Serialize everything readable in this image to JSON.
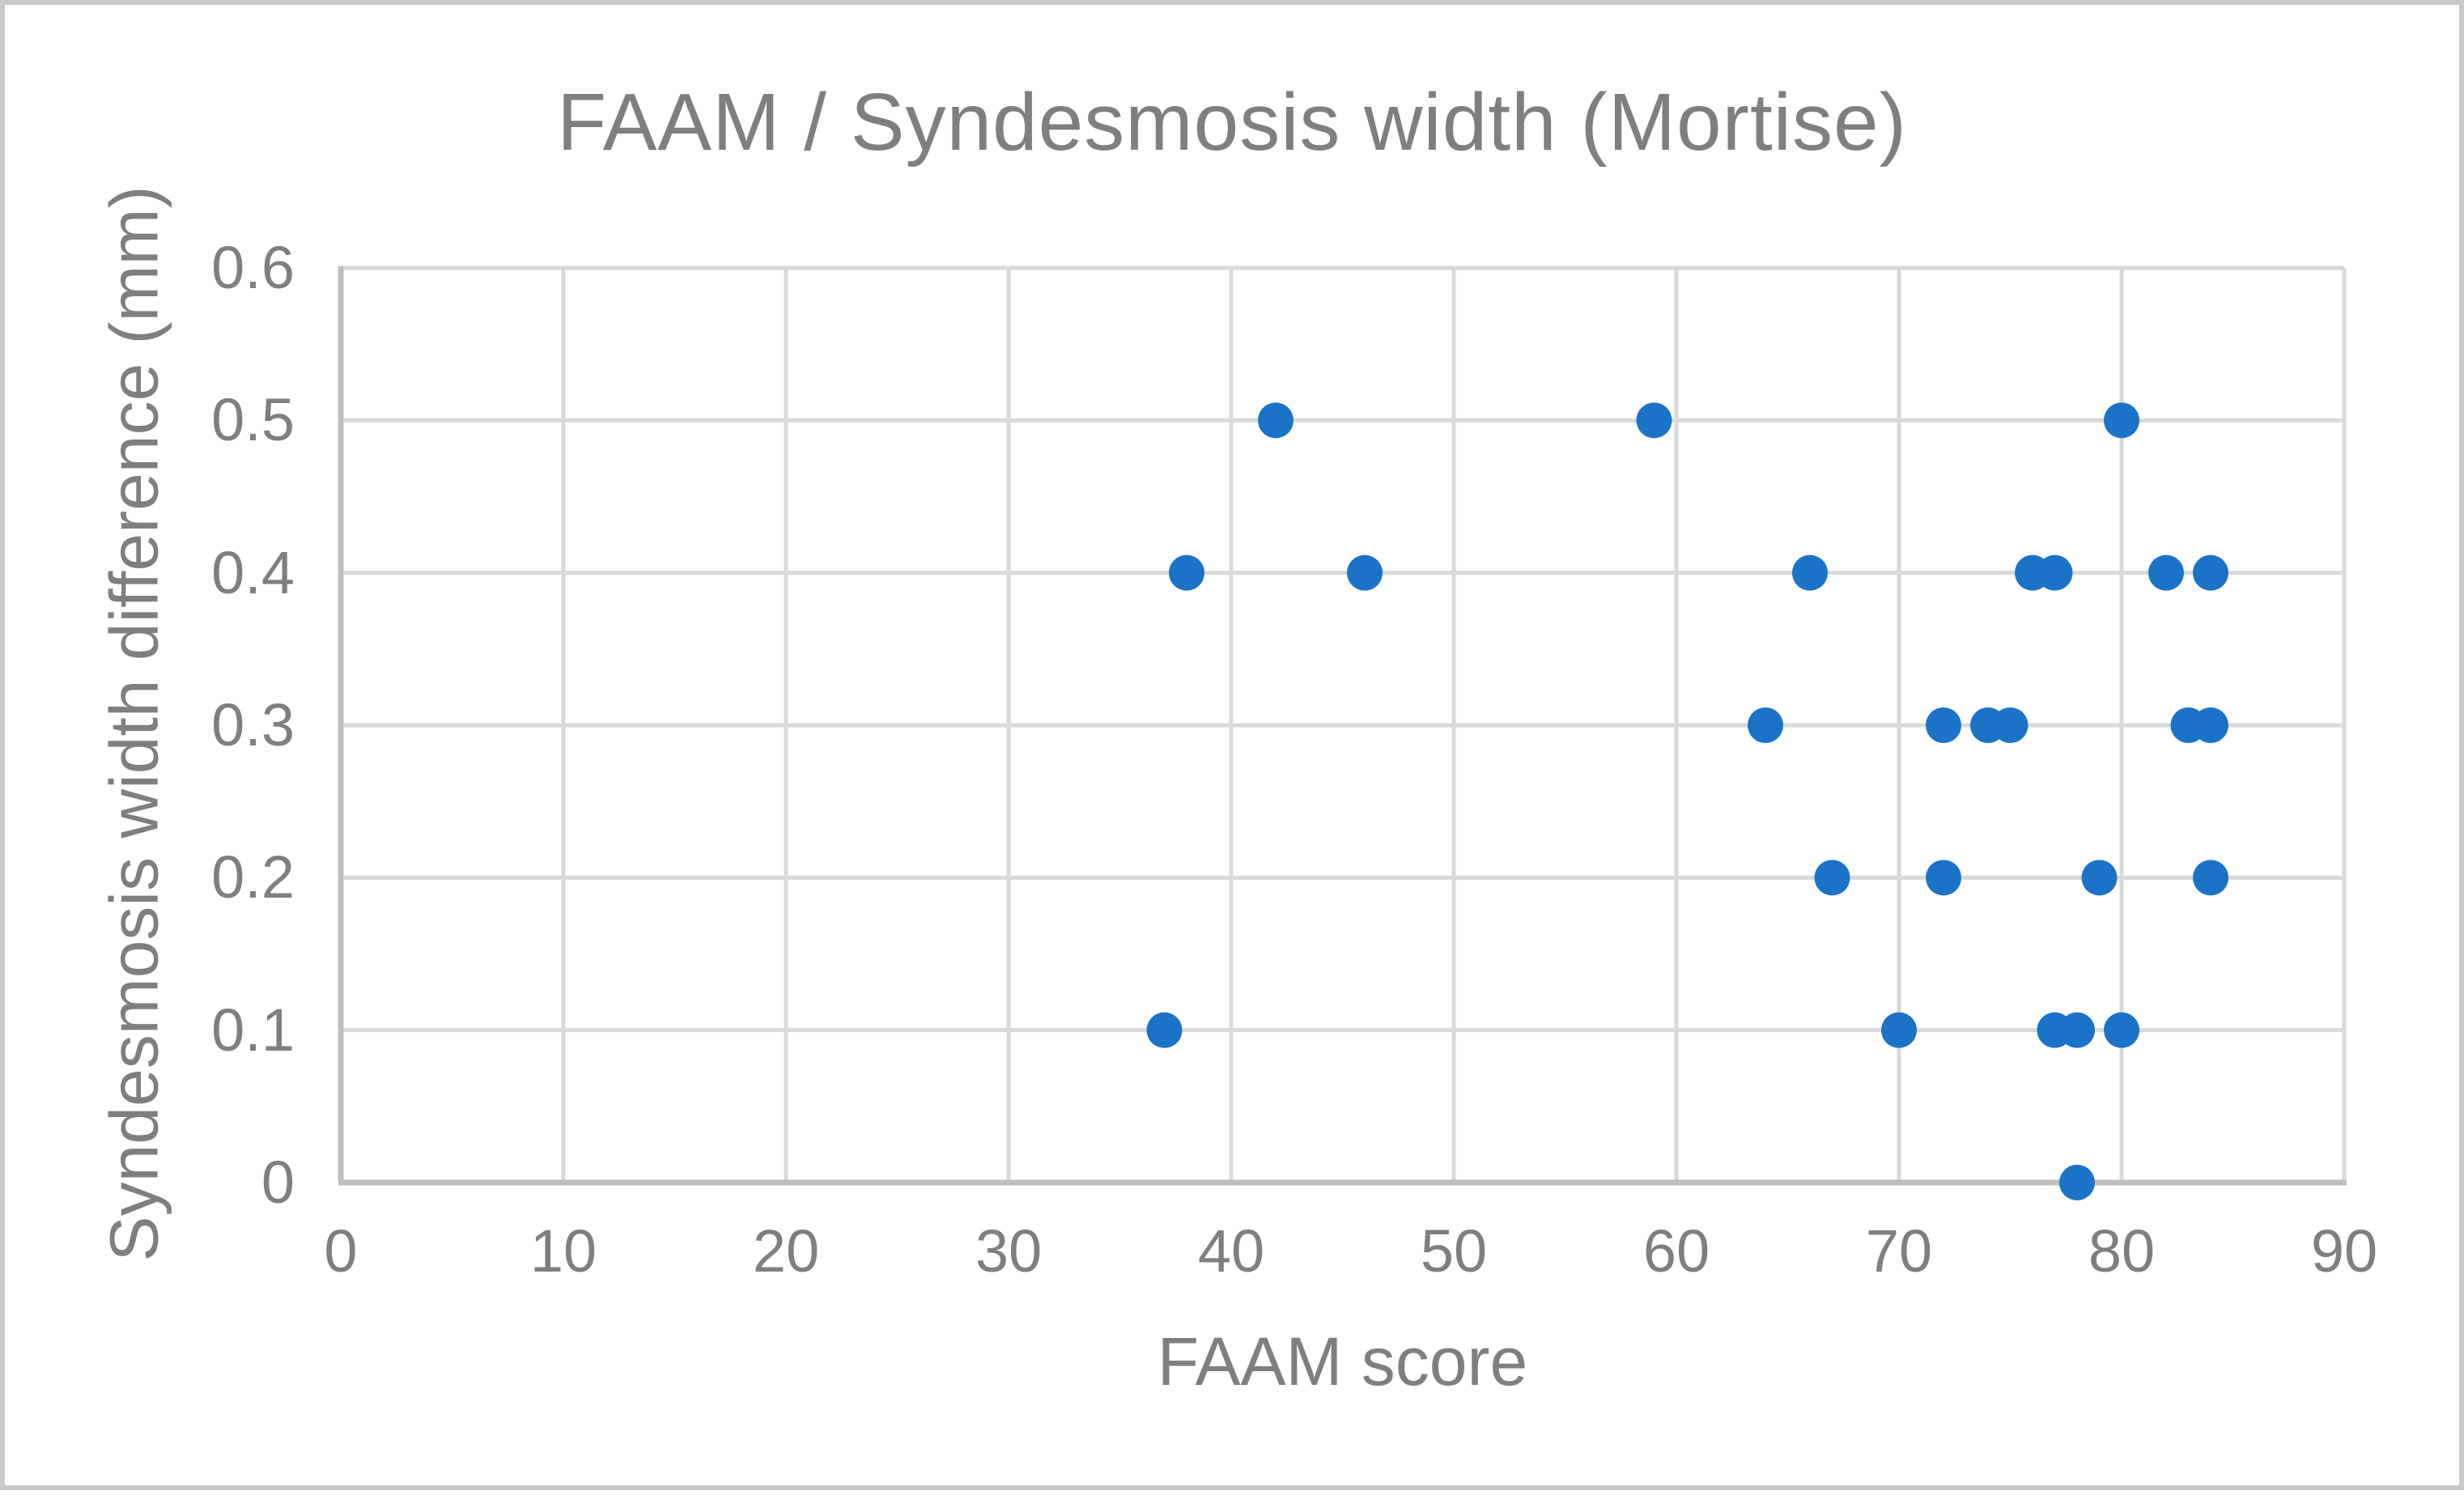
{
  "figure": {
    "background": "#FFFFFF",
    "border_color": "#C9C9C9"
  },
  "chart_data": {
    "type": "scatter",
    "title": "FAAM / Syndesmosis width (Mortise)",
    "xlabel": "FAAM score",
    "ylabel": "Syndesmosis width difference (mm)",
    "xlim": [
      0,
      90
    ],
    "ylim": [
      0,
      0.6
    ],
    "x_ticks": [
      0,
      10,
      20,
      30,
      40,
      50,
      60,
      70,
      80,
      90
    ],
    "y_ticks": [
      0.6,
      0.5,
      0.4,
      0.3,
      0.2,
      0.1,
      0
    ],
    "y_tick_labels": [
      "0.6",
      "0.5",
      "0.4",
      "0.3",
      "0.2",
      "0.1",
      "0"
    ],
    "grid": true,
    "legend_position": "none",
    "marker_color": "#1B73C7",
    "gridline_color": "#D9D9D9",
    "axis_line_color": "#BFBFBF",
    "text_color": "#7F7F7F",
    "points": [
      {
        "x": 42,
        "y": 0.5
      },
      {
        "x": 59,
        "y": 0.5
      },
      {
        "x": 80,
        "y": 0.5
      },
      {
        "x": 38,
        "y": 0.4
      },
      {
        "x": 46,
        "y": 0.4
      },
      {
        "x": 66,
        "y": 0.4
      },
      {
        "x": 76,
        "y": 0.4
      },
      {
        "x": 77,
        "y": 0.4
      },
      {
        "x": 82,
        "y": 0.4
      },
      {
        "x": 84,
        "y": 0.4
      },
      {
        "x": 64,
        "y": 0.3
      },
      {
        "x": 72,
        "y": 0.3
      },
      {
        "x": 74,
        "y": 0.3
      },
      {
        "x": 75,
        "y": 0.3
      },
      {
        "x": 83,
        "y": 0.3
      },
      {
        "x": 84,
        "y": 0.3
      },
      {
        "x": 67,
        "y": 0.2
      },
      {
        "x": 72,
        "y": 0.2
      },
      {
        "x": 79,
        "y": 0.2
      },
      {
        "x": 84,
        "y": 0.2
      },
      {
        "x": 37,
        "y": 0.1
      },
      {
        "x": 70,
        "y": 0.1
      },
      {
        "x": 77,
        "y": 0.1
      },
      {
        "x": 78,
        "y": 0.1
      },
      {
        "x": 80,
        "y": 0.1
      },
      {
        "x": 78,
        "y": 0.0
      }
    ]
  }
}
